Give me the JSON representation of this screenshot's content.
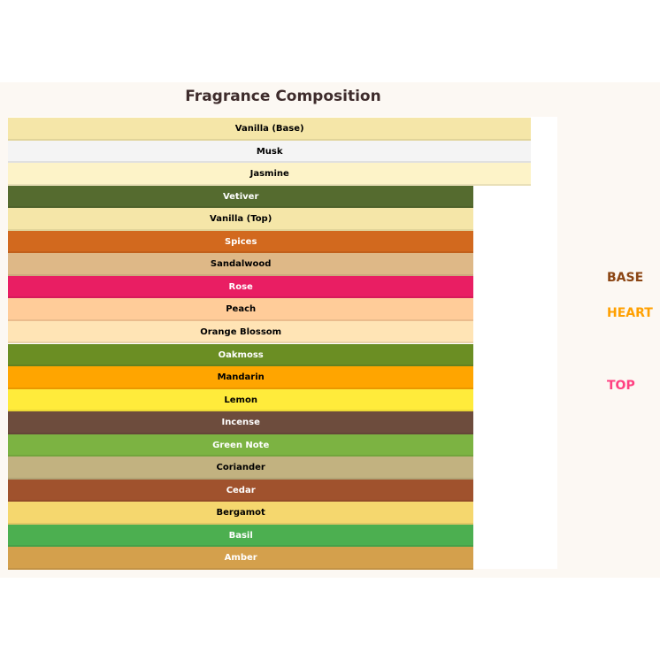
{
  "chart_data": {
    "type": "bar",
    "orientation": "horizontal",
    "title": "Fragrance Composition",
    "xlim": [
      0,
      1.05
    ],
    "grid": false,
    "legend_position": "right",
    "categories": [
      "Vanilla (Base)",
      "Musk",
      "Jasmine",
      "Vetiver",
      "Vanilla (Top)",
      "Spices",
      "Sandalwood",
      "Rose",
      "Peach",
      "Orange Blossom",
      "Oakmoss",
      "Mandarin",
      "Lemon",
      "Incense",
      "Green Note",
      "Coriander",
      "Cedar",
      "Bergamot",
      "Basil",
      "Amber"
    ],
    "values": [
      1.0,
      1.0,
      1.0,
      0.89,
      0.89,
      0.89,
      0.89,
      0.89,
      0.89,
      0.89,
      0.89,
      0.89,
      0.89,
      0.89,
      0.89,
      0.89,
      0.89,
      0.89,
      0.89,
      0.89
    ],
    "colors": [
      "#f5e6a8",
      "#f4f4f4",
      "#fdf3c8",
      "#556b2f",
      "#f5e6a8",
      "#d2691e",
      "#deb887",
      "#e91e63",
      "#ffcc99",
      "#ffe4b5",
      "#6b8e23",
      "#ffa500",
      "#ffeb3b",
      "#6d4c3d",
      "#7cb342",
      "#c2b280",
      "#a0522d",
      "#f5d76e",
      "#4caf50",
      "#d4a04c"
    ],
    "label_colors": [
      "#000",
      "#000",
      "#000",
      "#fff",
      "#000",
      "#fff",
      "#000",
      "#fff",
      "#000",
      "#000",
      "#fff",
      "#000",
      "#000",
      "#fff",
      "#fff",
      "#000",
      "#fff",
      "#000",
      "#fff",
      "#fff"
    ],
    "legend": [
      {
        "label": "BASE",
        "color": "#8b4513"
      },
      {
        "label": "HEART",
        "color": "#ffa000"
      },
      {
        "label": "TOP",
        "color": "#ff4081"
      }
    ]
  }
}
